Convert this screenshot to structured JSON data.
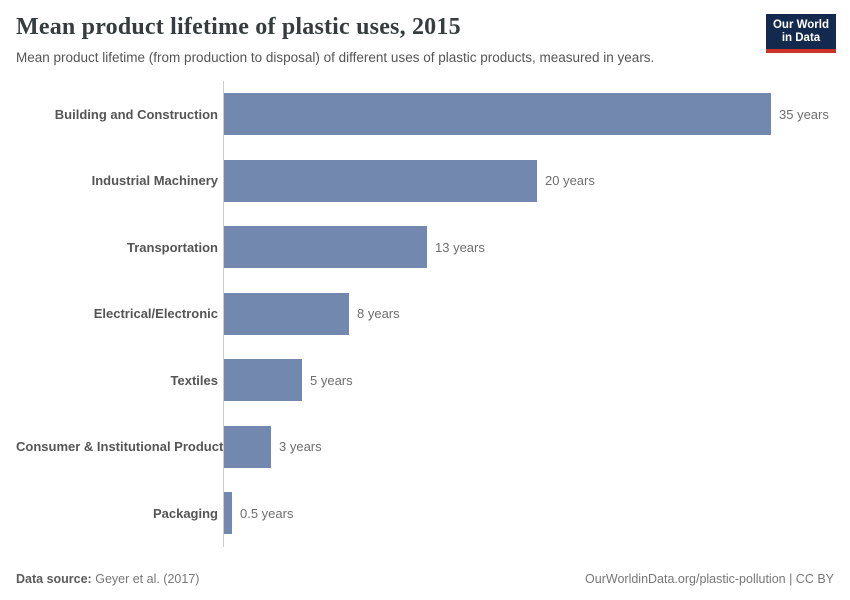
{
  "chart_data": {
    "type": "bar",
    "orientation": "horizontal",
    "title": "Mean product lifetime of plastic uses, 2015",
    "subtitle": "Mean product lifetime (from production to disposal) of different uses of plastic products, measured in years.",
    "categories": [
      "Building and Construction",
      "Industrial Machinery",
      "Transportation",
      "Electrical/Electronic",
      "Textiles",
      "Consumer & Institutional Products",
      "Packaging"
    ],
    "values": [
      35,
      20,
      13,
      8,
      5,
      3,
      0.5
    ],
    "value_labels": [
      "35 years",
      "20 years",
      "13 years",
      "8 years",
      "5 years",
      "3 years",
      "0.5 years"
    ],
    "unit": "years",
    "xlabel": "",
    "ylabel": "",
    "xlim": [
      0,
      35
    ],
    "grid": false,
    "legend": false,
    "bar_color": "#7288ae",
    "axis_color": "#cccccc"
  },
  "logo": {
    "line1": "Our World",
    "line2": "in Data",
    "bg_color": "#132a4e",
    "accent_color": "#ca3329"
  },
  "footer": {
    "source_label": "Data source:",
    "source_value": "Geyer et al. (2017)",
    "link": "OurWorldinData.org/plastic-pollution | CC BY"
  }
}
